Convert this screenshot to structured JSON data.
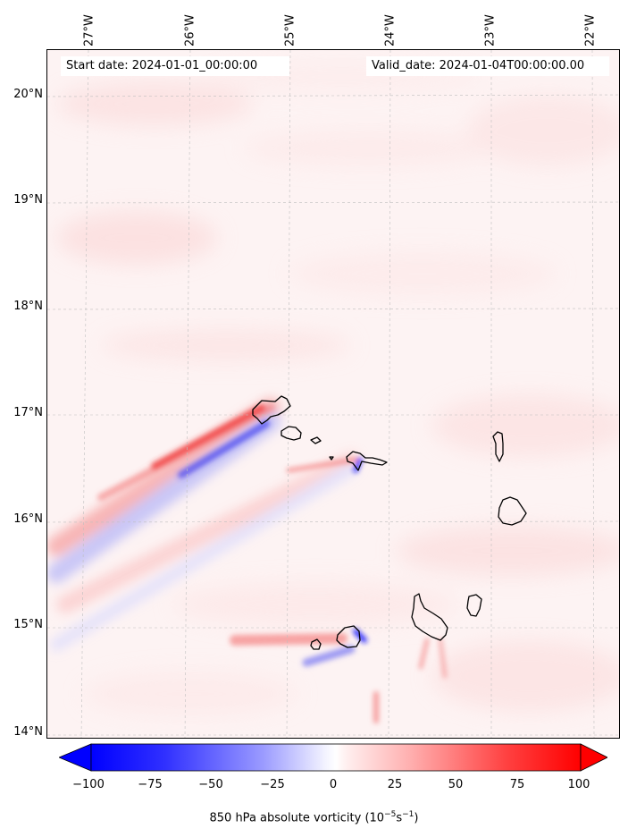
{
  "map": {
    "start_date": "Start date: 2024-01-01_00:00:00",
    "valid_date": "Valid_date: 2024-01-04T00:00:00.00",
    "longitude_labels": [
      "27°W",
      "26°W",
      "25°W",
      "24°W",
      "23°W",
      "22°W"
    ],
    "latitude_labels": [
      "20°N",
      "19°N",
      "18°N",
      "17°N",
      "16°N",
      "15°N",
      "14°N"
    ],
    "field": "850 hPa absolute vorticity",
    "region": "Cabo Verde islands",
    "features": {
      "coastlines": "black outlines",
      "gridlines": "dashed grey",
      "positive_streaks": "red wakes southwest of islands",
      "negative_streaks": "blue wakes southwest of islands"
    }
  },
  "colorbar": {
    "ticks": [
      "−100",
      "−75",
      "−50",
      "−25",
      "0",
      "25",
      "50",
      "75",
      "100"
    ],
    "label_text": "850 hPa absolute vorticity (10",
    "label_exp1": "−5",
    "label_mid": "s",
    "label_exp2": "−1",
    "label_end": ")",
    "min_color": "#0000ff",
    "max_color": "#ff0000",
    "extend": "both"
  }
}
